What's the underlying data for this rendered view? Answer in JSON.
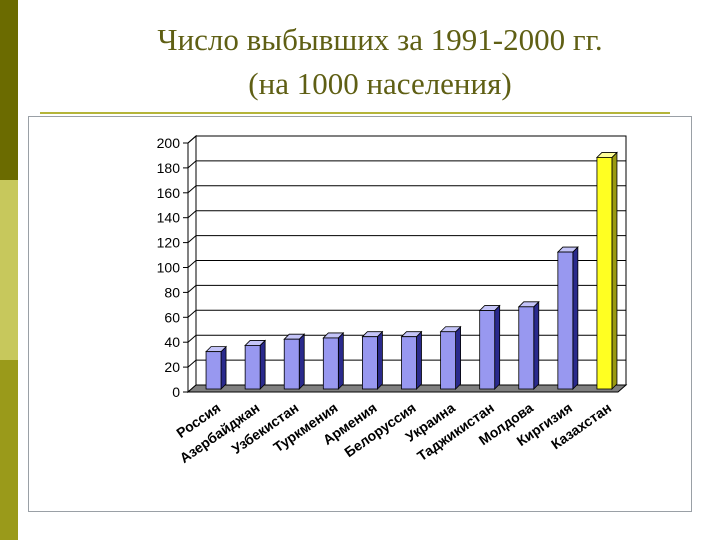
{
  "title": {
    "line1": "Число выбывших за 1991-2000 гг.",
    "line2": "(на 1000 населения)"
  },
  "colors": {
    "bar": "#9898f0",
    "bar_highlight": "#ffff22",
    "floor": "#808080",
    "grid": "#000000"
  },
  "chart_data": {
    "type": "bar",
    "categories": [
      "Россия",
      "Азербайджан",
      "Узбекистан",
      "Туркмения",
      "Армения",
      "Белоруссия",
      "Украина",
      "Таджикистан",
      "Молдова",
      "Киргизия",
      "Казахстан"
    ],
    "values": [
      30,
      35,
      40,
      41,
      42,
      42,
      46,
      63,
      66,
      110,
      186
    ],
    "highlight_index": 10,
    "ylim": [
      0,
      200
    ],
    "yticks": [
      0,
      20,
      40,
      60,
      80,
      100,
      120,
      140,
      160,
      180,
      200
    ],
    "grid": true,
    "title": "",
    "xlabel": "",
    "ylabel": ""
  }
}
